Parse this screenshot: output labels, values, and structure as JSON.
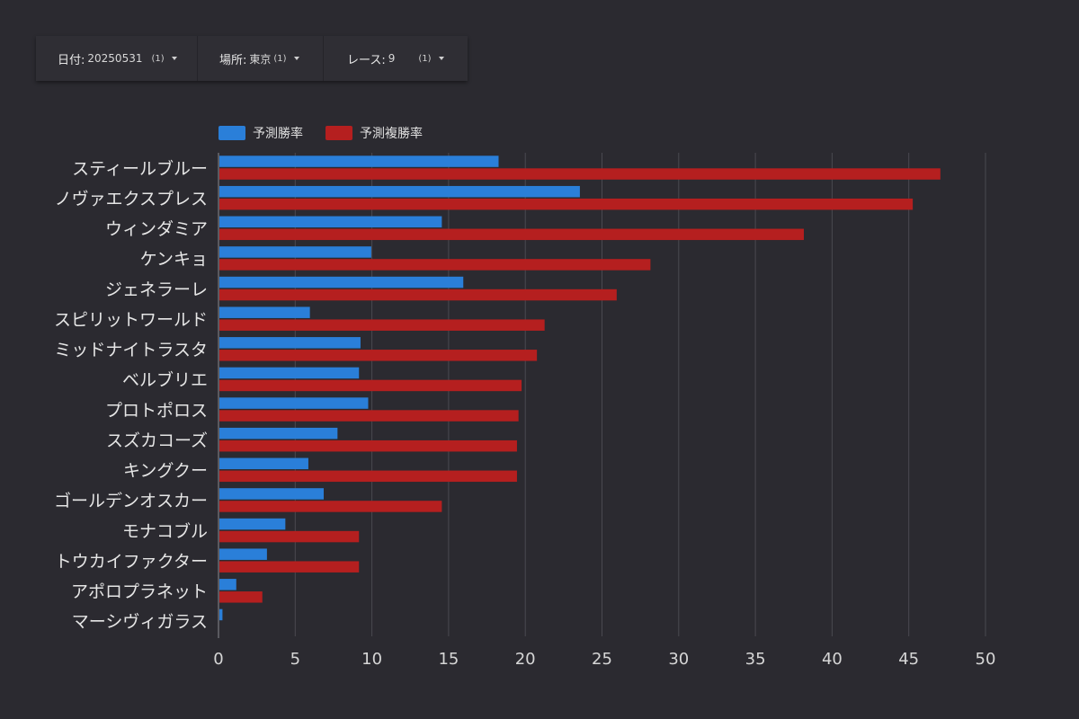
{
  "filters": {
    "date": {
      "label": "日付:",
      "value": "20250531",
      "count": "(1)"
    },
    "place": {
      "label": "場所:",
      "value": "東京",
      "count": "(1)"
    },
    "race": {
      "label": "レース:",
      "value": "9",
      "count": "(1)"
    }
  },
  "colors": {
    "series1": "#2a7fd9",
    "series2": "#b51f1f",
    "background": "#2b2a30",
    "grid": "#4a4950",
    "text": "#e6e6e6"
  },
  "chart_data": {
    "type": "bar",
    "orientation": "horizontal",
    "categories": [
      "スティールブルー",
      "ノヴァエクスプレス",
      "ウィンダミア",
      "ケンキョ",
      "ジェネラーレ",
      "スピリットワールド",
      "ミッドナイトラスタ",
      "ベルブリエ",
      "プロトポロス",
      "スズカコーズ",
      "キングクー",
      "ゴールデンオスカー",
      "モナコブル",
      "トウカイファクター",
      "アポロプラネット",
      "マーシヴィガラス"
    ],
    "series": [
      {
        "name": "予測勝率",
        "values": [
          18.2,
          23.5,
          14.5,
          9.9,
          15.9,
          5.9,
          9.2,
          9.1,
          9.7,
          7.7,
          5.8,
          6.8,
          4.3,
          3.1,
          1.1,
          0.2
        ]
      },
      {
        "name": "予測複勝率",
        "values": [
          47.0,
          45.2,
          38.1,
          28.1,
          25.9,
          21.2,
          20.7,
          19.7,
          19.5,
          19.4,
          19.4,
          14.5,
          9.1,
          9.1,
          2.8,
          0
        ]
      }
    ],
    "xlim": [
      0,
      50
    ],
    "xticks": [
      0,
      5,
      10,
      15,
      20,
      25,
      30,
      35,
      40,
      45,
      50
    ],
    "grid": true,
    "legend_position": "top-left"
  }
}
